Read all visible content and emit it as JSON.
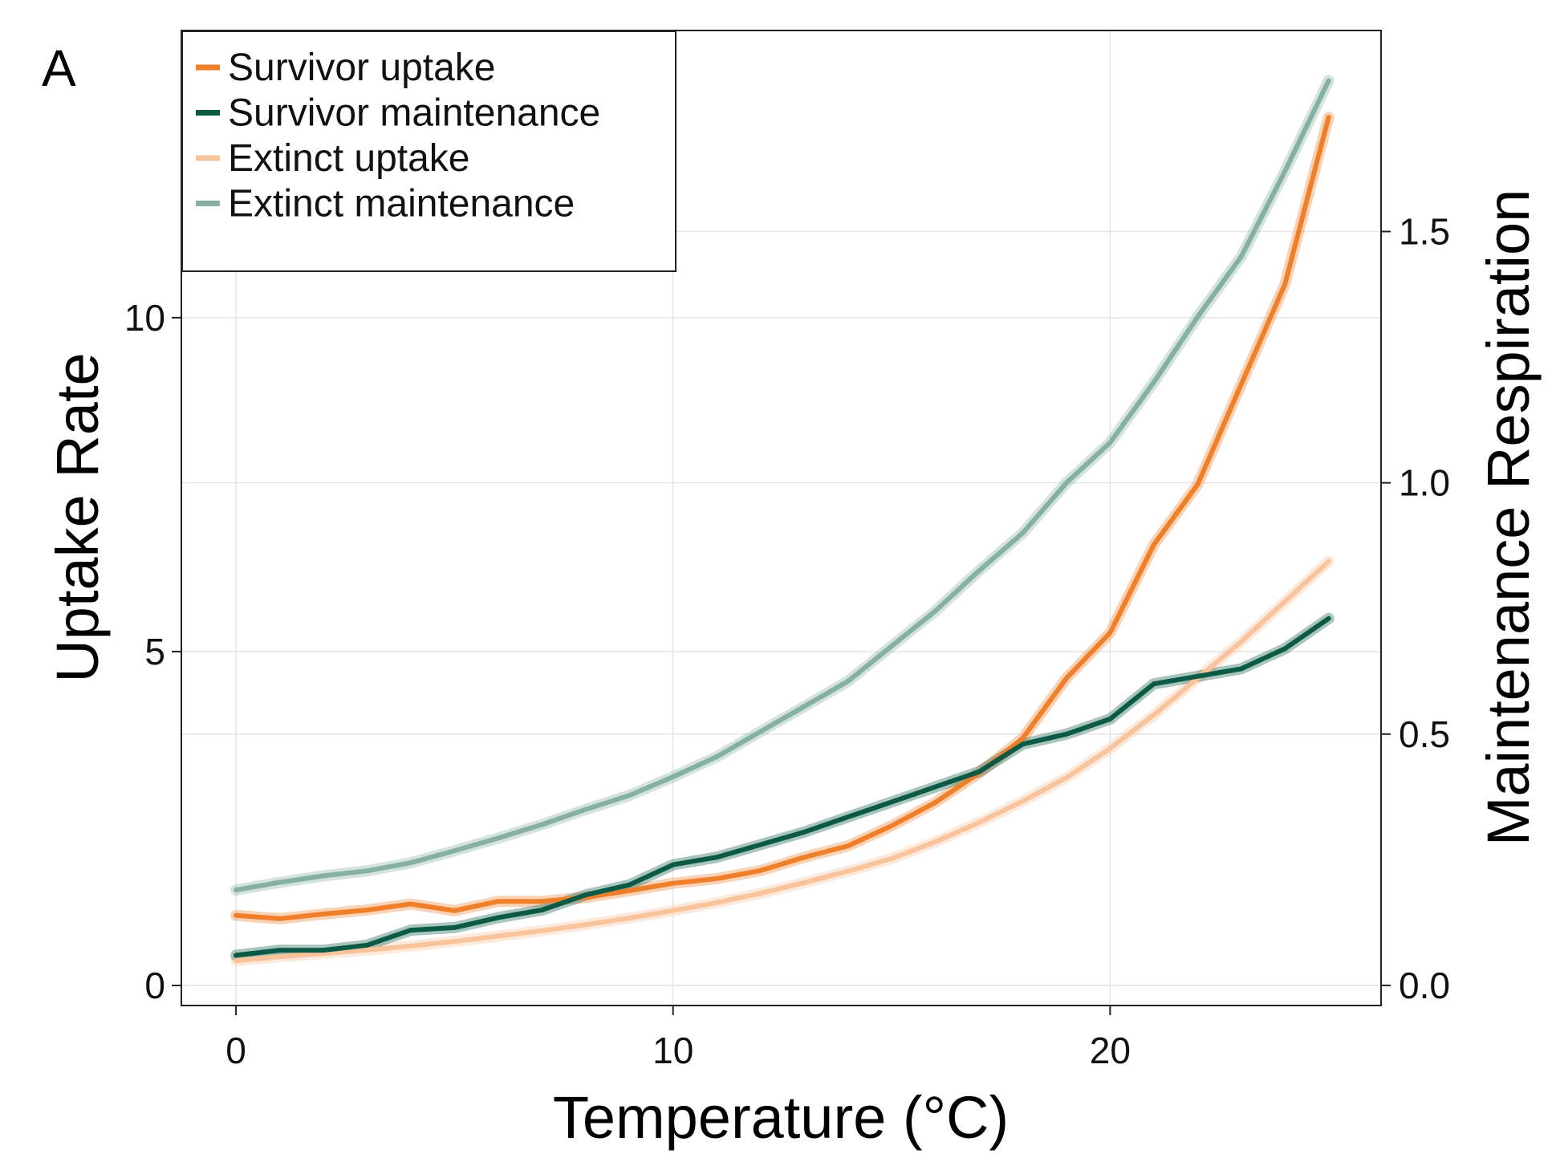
{
  "panel_label": "A",
  "chart_data": {
    "type": "line",
    "xlabel": "Temperature (°C)",
    "ylabel_left": "Uptake Rate",
    "ylabel_right": "Maintenance Respiration",
    "xlim": [
      -1.25,
      26.2
    ],
    "ylim_left": [
      -0.3,
      14.3
    ],
    "ylim_right": [
      -0.04,
      1.9
    ],
    "x_ticks": [
      0,
      10,
      20
    ],
    "y_left_ticks": [
      0,
      5,
      10
    ],
    "y_right_ticks": [
      "0.0",
      "0.5",
      "1.0",
      "1.5"
    ],
    "grid": true,
    "legend_position": "top-left",
    "x": [
      0,
      1,
      2,
      3,
      4,
      5,
      6,
      7,
      8,
      9,
      10,
      11,
      12,
      13,
      14,
      15,
      16,
      17,
      18,
      19,
      20,
      21,
      22,
      23,
      24,
      25
    ],
    "series": [
      {
        "name": "Survivor uptake",
        "axis": "left",
        "color": "#f07f2a",
        "values": [
          1.05,
          1.0,
          1.07,
          1.13,
          1.22,
          1.12,
          1.26,
          1.26,
          1.32,
          1.42,
          1.53,
          1.6,
          1.72,
          1.92,
          2.09,
          2.39,
          2.74,
          3.18,
          3.7,
          4.6,
          5.28,
          6.6,
          7.5,
          9.0,
          10.5,
          13.0
        ]
      },
      {
        "name": "Survivor maintenance",
        "axis": "right",
        "color": "#0c5a45",
        "values": [
          0.06,
          0.07,
          0.07,
          0.08,
          0.11,
          0.115,
          0.135,
          0.15,
          0.18,
          0.2,
          0.24,
          0.255,
          0.28,
          0.305,
          0.335,
          0.365,
          0.395,
          0.425,
          0.48,
          0.5,
          0.53,
          0.6,
          0.615,
          0.63,
          0.67,
          0.73
        ]
      },
      {
        "name": "Extinct uptake",
        "axis": "left",
        "color": "#f9c39b",
        "values": [
          0.37,
          0.43,
          0.48,
          0.53,
          0.59,
          0.66,
          0.74,
          0.82,
          0.91,
          1.01,
          1.12,
          1.24,
          1.38,
          1.54,
          1.71,
          1.9,
          2.15,
          2.44,
          2.76,
          3.11,
          3.55,
          4.05,
          4.6,
          5.15,
          5.75,
          6.35
        ]
      },
      {
        "name": "Extinct maintenance",
        "axis": "right",
        "color": "#86b0a2",
        "values": [
          0.19,
          0.205,
          0.218,
          0.228,
          0.244,
          0.268,
          0.293,
          0.32,
          0.35,
          0.378,
          0.415,
          0.455,
          0.505,
          0.555,
          0.605,
          0.675,
          0.745,
          0.825,
          0.9,
          1.0,
          1.08,
          1.2,
          1.33,
          1.45,
          1.62,
          1.8
        ]
      }
    ]
  }
}
